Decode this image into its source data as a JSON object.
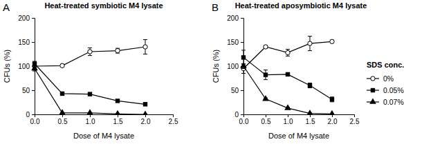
{
  "chart_data": [
    {
      "type": "line",
      "title": "Heat-treated symbiotic M4 lysate",
      "annotations": [
        "A"
      ],
      "x_label": "Dose of M4 lysate",
      "y_label": "CFUs (%)",
      "x": [
        0,
        0.5,
        1.0,
        1.5,
        2.0
      ],
      "xlim": [
        0,
        2.5
      ],
      "xticks": [
        {
          "value": 0,
          "label": "0.0"
        },
        {
          "value": 0.5,
          "label": "0.5"
        },
        {
          "value": 1,
          "label": "1.0"
        },
        {
          "value": 1.5,
          "label": "1.5"
        },
        {
          "value": 2,
          "label": "2.0"
        },
        {
          "value": 2.5,
          "label": "2.5"
        }
      ],
      "ylim": [
        0,
        200
      ],
      "yticks": [
        0,
        50,
        100,
        150,
        200
      ],
      "series": [
        {
          "name": "0%",
          "color": "#000000",
          "marker": "open-circle",
          "values": [
            100,
            101,
            130,
            132,
            140
          ],
          "errors": [
            3,
            3,
            8,
            5,
            15
          ]
        },
        {
          "name": "0.05%",
          "color": "#000000",
          "marker": "square",
          "values": [
            105,
            43,
            42,
            28,
            21
          ],
          "errors": [
            5,
            2,
            3,
            2,
            2
          ]
        },
        {
          "name": "0.07%",
          "color": "#000000",
          "marker": "triangle",
          "values": [
            95,
            3,
            3,
            1,
            0
          ],
          "errors": [
            5,
            1,
            1,
            1,
            0
          ]
        }
      ]
    },
    {
      "type": "line",
      "title": "Heat-treated aposymbiotic M4 lysate",
      "annotations": [
        "B"
      ],
      "x_label": "Dose of M4 lysate",
      "y_label": "CFUs (%)",
      "legend": "right",
      "legend_title": "SDS conc.",
      "x": [
        0,
        0.5,
        1.0,
        1.5,
        2.0
      ],
      "xlim": [
        0,
        2.5
      ],
      "xticks": [
        {
          "value": 0,
          "label": "0.0"
        },
        {
          "value": 0.5,
          "label": "0.5"
        },
        {
          "value": 1,
          "label": "1.0"
        },
        {
          "value": 1.5,
          "label": "1.5"
        },
        {
          "value": 2,
          "label": "2.0"
        },
        {
          "value": 2.5,
          "label": "2.5"
        }
      ],
      "ylim": [
        0,
        200
      ],
      "yticks": [
        0,
        50,
        100,
        150,
        200
      ],
      "series": [
        {
          "name": "0%",
          "color": "#000000",
          "marker": "open-circle",
          "values": [
            95,
            140,
            128,
            147,
            151
          ],
          "errors": [
            10,
            3,
            7,
            15,
            3
          ]
        },
        {
          "name": "0.05%",
          "color": "#000000",
          "marker": "square",
          "values": [
            118,
            82,
            83,
            60,
            31
          ],
          "errors": [
            15,
            10,
            3,
            5,
            5
          ]
        },
        {
          "name": "0.07%",
          "color": "#000000",
          "marker": "triangle",
          "values": [
            100,
            32,
            13,
            2,
            1
          ],
          "errors": [
            5,
            2,
            2,
            1,
            0
          ]
        }
      ]
    }
  ]
}
